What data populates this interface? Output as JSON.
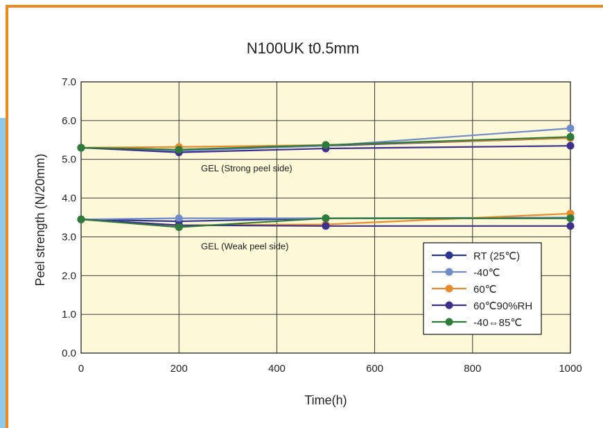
{
  "chart_data": {
    "type": "line",
    "title": "N100UK t0.5mm",
    "xlabel": "Time(h)",
    "ylabel": "Peel strength (N/20mm)",
    "xlim": [
      0,
      1000
    ],
    "ylim": [
      0,
      7
    ],
    "xticks": [
      "0",
      "200",
      "400",
      "600",
      "800",
      "1000"
    ],
    "yticks": [
      "0.0",
      "1.0",
      "2.0",
      "3.0",
      "4.0",
      "5.0",
      "6.0",
      "7.0"
    ],
    "grid": true,
    "legend_position": "bottom-right",
    "annotations": [
      "GEL (Strong peel side)",
      "GEL (Weak peel side)"
    ],
    "x": [
      0,
      200,
      500,
      1000
    ],
    "groups": [
      {
        "group": "GEL (Strong peel side)",
        "series": [
          {
            "name": "RT (25℃)",
            "values": [
              5.3,
              5.25,
              5.35,
              5.55
            ]
          },
          {
            "name": "-40℃",
            "values": [
              5.3,
              5.22,
              5.35,
              5.8
            ]
          },
          {
            "name": "60℃",
            "values": [
              5.3,
              5.32,
              5.37,
              5.55
            ]
          },
          {
            "name": "60℃90%RH",
            "values": [
              5.3,
              5.18,
              5.28,
              5.35
            ]
          },
          {
            "name": "-40⇔85℃",
            "values": [
              5.3,
              5.25,
              5.37,
              5.58
            ]
          }
        ]
      },
      {
        "group": "GEL (Weak peel side)",
        "series": [
          {
            "name": "RT (25℃)",
            "values": [
              3.45,
              3.4,
              3.48,
              3.48
            ]
          },
          {
            "name": "-40℃",
            "values": [
              3.45,
              3.48,
              3.48,
              3.5
            ]
          },
          {
            "name": "60℃",
            "values": [
              3.45,
              3.3,
              3.32,
              3.6
            ]
          },
          {
            "name": "60℃90%RH",
            "values": [
              3.45,
              3.3,
              3.28,
              3.28
            ]
          },
          {
            "name": "-40⇔85℃",
            "values": [
              3.45,
              3.25,
              3.48,
              3.48
            ]
          }
        ]
      }
    ],
    "legend": [
      {
        "name": "RT (25℃)",
        "color": "#2a3590"
      },
      {
        "name": "-40℃",
        "color": "#6f8bc8"
      },
      {
        "name": "60℃",
        "color": "#e8892a"
      },
      {
        "name": "60℃90%RH",
        "color": "#3d2f8c"
      },
      {
        "name": "-40⇔85℃",
        "color": "#2d7a3a"
      }
    ]
  }
}
